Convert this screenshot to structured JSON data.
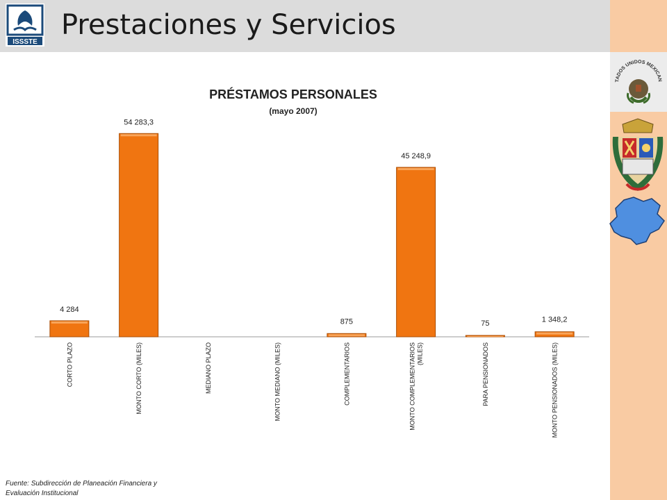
{
  "header": {
    "title": "Prestaciones y Servicios",
    "logo_text": "ISSSTE"
  },
  "sidebar": {
    "seal_text": "ESTADOS UNIDOS MEXICANOS",
    "icons": [
      "mexico-seal-icon",
      "state-coat-of-arms-icon",
      "state-map-icon"
    ]
  },
  "colors": {
    "bar": "#f07511",
    "bar_edge": "#a94e06",
    "header_bg": "#dcdcdc",
    "sidebar_bg": "#f9cba3",
    "map": "#4f8fe0"
  },
  "chart_data": {
    "type": "bar",
    "title": "PRÉSTAMOS PERSONALES",
    "subtitle": "(mayo 2007)",
    "xlabel": "",
    "ylabel": "",
    "categories": [
      [
        "CORTO PLAZO"
      ],
      [
        "MONTO  CORTO (MILES)"
      ],
      [
        "MEDIANO PLAZO"
      ],
      [
        "MONTO MEDIANO (MILES)"
      ],
      [
        "COMPLEMENTARIOS"
      ],
      [
        "MONTO COMPLEMENTARIOS",
        "(MILES)"
      ],
      [
        "PARA PENSIONADOS"
      ],
      [
        "MONTO PENSIONADOS (MILES)"
      ]
    ],
    "values": [
      4284,
      54283.3,
      null,
      null,
      875,
      45248.9,
      75,
      1348.2
    ],
    "labels": [
      "4 284",
      "54 283,3",
      "",
      "",
      "875",
      "45 248,9",
      "75",
      "1 348,2"
    ],
    "ylim": [
      0,
      56000
    ],
    "grid": false,
    "legend": "none"
  },
  "footer": {
    "line1": "Fuente: Subdirección de Planeación Financiera y",
    "line2": "Evaluación Institucional"
  }
}
